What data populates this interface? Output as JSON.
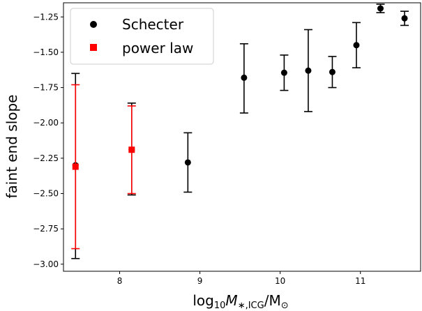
{
  "chart_data": {
    "type": "scatter",
    "xlabel": "log10 M*,ICG/M⊙",
    "xlabel_parts": {
      "pre": "log",
      "sub10": "10",
      "M": "M",
      "sub": "∗,ICG",
      "post": "/M",
      "sun": "⊙"
    },
    "ylabel": "faint end slope",
    "xlim": [
      7.3,
      11.75
    ],
    "ylim": [
      -3.05,
      -1.15
    ],
    "xticks": [
      8,
      9,
      10,
      11
    ],
    "yticks": [
      -1.25,
      -1.5,
      -1.75,
      -2.0,
      -2.25,
      -2.5,
      -2.75,
      -3.0
    ],
    "ytick_labels": [
      "−1.25",
      "−1.50",
      "−1.75",
      "−2.00",
      "−2.25",
      "−2.50",
      "−2.75",
      "−3.00"
    ],
    "xtick_labels": [
      "8",
      "9",
      "10",
      "11"
    ],
    "legend": {
      "position": "top-left",
      "entries": [
        {
          "label": "Schecter",
          "marker": "circle",
          "color": "#000000"
        },
        {
          "label": "power law",
          "marker": "square",
          "color": "#ff0000"
        }
      ]
    },
    "series": [
      {
        "name": "Schecter",
        "marker": "circle",
        "color": "#000000",
        "points": [
          {
            "x": 7.45,
            "y": -2.3,
            "ylo": -2.96,
            "yhi": -1.65
          },
          {
            "x": 8.15,
            "y": -2.19,
            "ylo": -2.51,
            "yhi": -1.86
          },
          {
            "x": 8.85,
            "y": -2.28,
            "ylo": -2.49,
            "yhi": -2.07
          },
          {
            "x": 9.55,
            "y": -1.68,
            "ylo": -1.93,
            "yhi": -1.44
          },
          {
            "x": 10.05,
            "y": -1.645,
            "ylo": -1.77,
            "yhi": -1.52
          },
          {
            "x": 10.35,
            "y": -1.63,
            "ylo": -1.92,
            "yhi": -1.34
          },
          {
            "x": 10.65,
            "y": -1.64,
            "ylo": -1.75,
            "yhi": -1.53
          },
          {
            "x": 10.95,
            "y": -1.45,
            "ylo": -1.61,
            "yhi": -1.29
          },
          {
            "x": 11.25,
            "y": -1.19,
            "ylo": -1.22,
            "yhi": -1.16
          },
          {
            "x": 11.55,
            "y": -1.26,
            "ylo": -1.31,
            "yhi": -1.21
          }
        ]
      },
      {
        "name": "power law",
        "marker": "square",
        "color": "#ff0000",
        "points": [
          {
            "x": 7.45,
            "y": -2.31,
            "ylo": -2.89,
            "yhi": -1.73
          },
          {
            "x": 8.15,
            "y": -2.19,
            "ylo": -2.5,
            "yhi": -1.88
          }
        ]
      }
    ]
  }
}
